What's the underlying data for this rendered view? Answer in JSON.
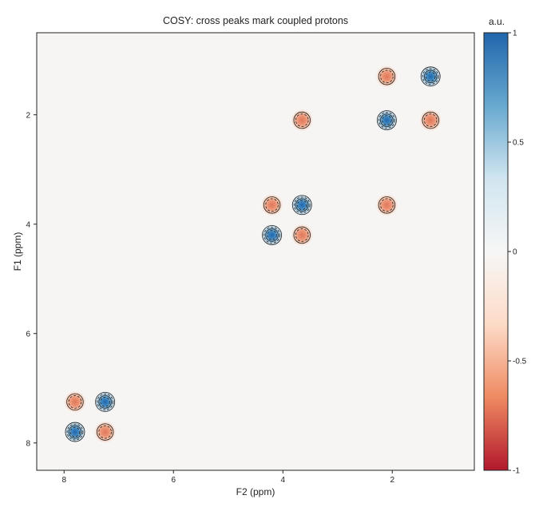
{
  "chart_data": {
    "type": "heatmap",
    "title": "COSY: cross peaks mark coupled protons",
    "xlabel": "F2 (ppm)",
    "ylabel": "F1 (ppm)",
    "xlim": [
      8.5,
      0.5
    ],
    "ylim": [
      0.5,
      8.5
    ],
    "x_reversed": true,
    "y_reversed": true,
    "xticks": [
      "8",
      "6",
      "4",
      "2"
    ],
    "yticks": [
      "2",
      "4",
      "6",
      "8"
    ],
    "colorbar": {
      "label": "a.u.",
      "range": [
        -1,
        1
      ],
      "ticks": [
        "1",
        "0.5",
        "0",
        "-0.5",
        "-1"
      ],
      "colormap": "RdBu",
      "colors": [
        "#b2182b",
        "#ef8a62",
        "#fddbc7",
        "#f7f7f7",
        "#d1e5f0",
        "#67a9cf",
        "#2166ac"
      ]
    },
    "grid": false,
    "peaks": [
      {
        "f2": 1.3,
        "f1": 1.3,
        "value": 1.0
      },
      {
        "f2": 2.1,
        "f1": 2.1,
        "value": 1.0
      },
      {
        "f2": 3.65,
        "f1": 3.65,
        "value": 1.0
      },
      {
        "f2": 4.2,
        "f1": 4.2,
        "value": 1.0
      },
      {
        "f2": 7.25,
        "f1": 7.25,
        "value": 1.0
      },
      {
        "f2": 7.8,
        "f1": 7.8,
        "value": 1.0
      },
      {
        "f2": 2.1,
        "f1": 1.3,
        "value": -0.6
      },
      {
        "f2": 1.3,
        "f1": 2.1,
        "value": -0.6
      },
      {
        "f2": 3.65,
        "f1": 2.1,
        "value": -0.6
      },
      {
        "f2": 2.1,
        "f1": 3.65,
        "value": -0.6
      },
      {
        "f2": 4.2,
        "f1": 3.65,
        "value": -0.6
      },
      {
        "f2": 3.65,
        "f1": 4.2,
        "value": -0.6
      },
      {
        "f2": 7.8,
        "f1": 7.25,
        "value": -0.6
      },
      {
        "f2": 7.25,
        "f1": 7.8,
        "value": -0.6
      }
    ]
  }
}
